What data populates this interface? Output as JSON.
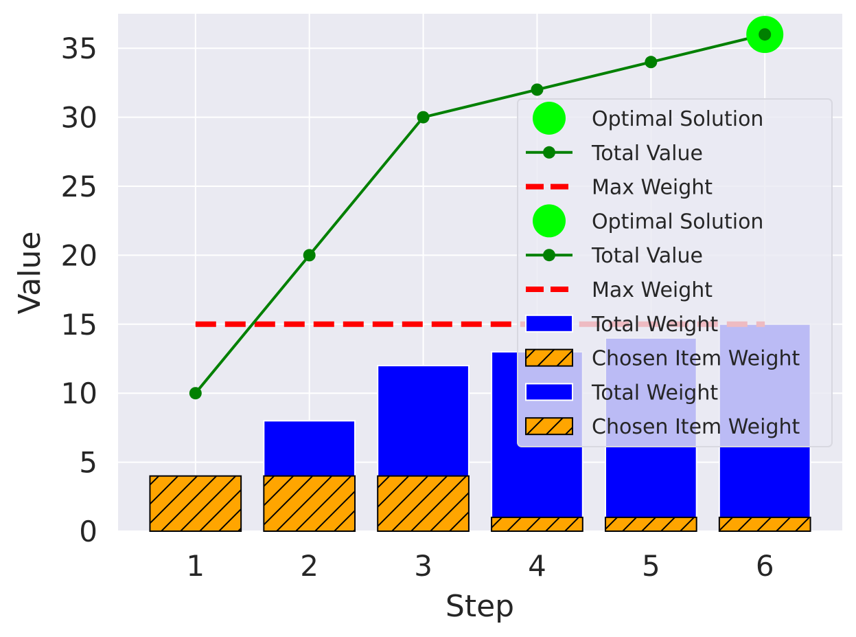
{
  "chart_data": {
    "type": "bar",
    "xlabel": "Step",
    "ylabel": "Value",
    "x": [
      1,
      2,
      3,
      4,
      5,
      6
    ],
    "xlim": [
      0.32,
      6.68
    ],
    "ylim": [
      0,
      37.5
    ],
    "yticks": [
      0,
      5,
      10,
      15,
      20,
      25,
      30,
      35
    ],
    "grid": true,
    "legend_position": "right",
    "series": [
      {
        "name": "Total Weight",
        "type": "bar",
        "values": [
          4,
          8,
          12,
          13,
          14,
          15
        ],
        "color": "#0000ff"
      },
      {
        "name": "Chosen Item Weight",
        "type": "bar",
        "values": [
          4,
          4,
          4,
          1,
          1,
          1
        ],
        "color": "#ffa500",
        "hatch": "/"
      },
      {
        "name": "Total Value",
        "type": "line",
        "values": [
          10,
          20,
          30,
          32,
          34,
          36
        ],
        "color": "#008000"
      },
      {
        "name": "Max Weight",
        "type": "hline",
        "value": 15,
        "x_range": [
          1,
          6
        ],
        "color": "#ff0000",
        "style": "dashed"
      },
      {
        "name": "Optimal Solution",
        "type": "scatter",
        "x": [
          6
        ],
        "values": [
          36
        ],
        "color": "#00ff00"
      }
    ],
    "legend": [
      {
        "label": "Optimal Solution",
        "kind": "marker",
        "color": "#00ff00"
      },
      {
        "label": "Total Value",
        "kind": "line-marker",
        "color": "#008000"
      },
      {
        "label": "Max Weight",
        "kind": "dashed",
        "color": "#ff0000"
      },
      {
        "label": "Optimal Solution",
        "kind": "marker",
        "color": "#00ff00"
      },
      {
        "label": "Total Value",
        "kind": "line-marker",
        "color": "#008000"
      },
      {
        "label": "Max Weight",
        "kind": "dashed",
        "color": "#ff0000"
      },
      {
        "label": "Total Weight",
        "kind": "patch",
        "color": "#0000ff"
      },
      {
        "label": "Chosen Item Weight",
        "kind": "hatch",
        "color": "#ffa500"
      },
      {
        "label": "Total Weight",
        "kind": "patch",
        "color": "#0000ff"
      },
      {
        "label": "Chosen Item Weight",
        "kind": "hatch",
        "color": "#ffa500"
      }
    ]
  }
}
